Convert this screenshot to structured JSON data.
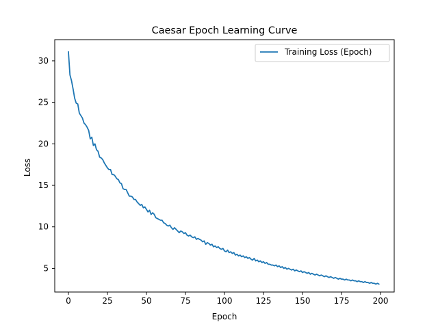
{
  "chart_data": {
    "type": "line",
    "title": "Caesar Epoch Learning Curve",
    "xlabel": "Epoch",
    "ylabel": "Loss",
    "xlim": [
      -8.75,
      208.75
    ],
    "ylim": [
      2.15,
      32.55
    ],
    "xticks": [
      0,
      25,
      50,
      75,
      100,
      125,
      150,
      175,
      200
    ],
    "yticks": [
      5,
      10,
      15,
      20,
      25,
      30
    ],
    "grid": false,
    "legend_position": "top-right",
    "series": [
      {
        "name": "Training Loss (Epoch)",
        "color": "#1f77b4",
        "x": [
          0,
          1,
          2,
          3,
          4,
          5,
          6,
          7,
          8,
          9,
          10,
          11,
          12,
          13,
          14,
          15,
          16,
          17,
          18,
          19,
          20,
          21,
          22,
          23,
          24,
          25,
          26,
          27,
          28,
          29,
          30,
          31,
          32,
          33,
          34,
          35,
          36,
          37,
          38,
          39,
          40,
          41,
          42,
          43,
          44,
          45,
          46,
          47,
          48,
          49,
          50,
          51,
          52,
          53,
          54,
          55,
          56,
          57,
          58,
          59,
          60,
          61,
          62,
          63,
          64,
          65,
          66,
          67,
          68,
          69,
          70,
          71,
          72,
          73,
          74,
          75,
          76,
          77,
          78,
          79,
          80,
          81,
          82,
          83,
          84,
          85,
          86,
          87,
          88,
          89,
          90,
          91,
          92,
          93,
          94,
          95,
          96,
          97,
          98,
          99,
          100,
          101,
          102,
          103,
          104,
          105,
          106,
          107,
          108,
          109,
          110,
          111,
          112,
          113,
          114,
          115,
          116,
          117,
          118,
          119,
          120,
          121,
          122,
          123,
          124,
          125,
          126,
          127,
          128,
          129,
          130,
          131,
          132,
          133,
          134,
          135,
          136,
          137,
          138,
          139,
          140,
          141,
          142,
          143,
          144,
          145,
          146,
          147,
          148,
          149,
          150,
          151,
          152,
          153,
          154,
          155,
          156,
          157,
          158,
          159,
          160,
          161,
          162,
          163,
          164,
          165,
          166,
          167,
          168,
          169,
          170,
          171,
          172,
          173,
          174,
          175,
          176,
          177,
          178,
          179,
          180,
          181,
          182,
          183,
          184,
          185,
          186,
          187,
          188,
          189,
          190,
          191,
          192,
          193,
          194,
          195,
          196,
          197,
          198,
          199
        ],
        "y": [
          31.1,
          28.3,
          27.6,
          26.6,
          25.5,
          24.9,
          24.8,
          23.7,
          23.4,
          23.1,
          22.5,
          22.3,
          22.0,
          21.6,
          20.6,
          20.8,
          19.8,
          20.0,
          19.3,
          19.1,
          18.4,
          18.3,
          18.1,
          17.7,
          17.4,
          17.1,
          16.9,
          16.9,
          16.3,
          16.3,
          16.1,
          15.8,
          15.7,
          15.3,
          15.2,
          14.6,
          14.5,
          14.5,
          14.1,
          13.7,
          13.7,
          13.6,
          13.3,
          13.3,
          13.0,
          12.8,
          12.6,
          12.7,
          12.3,
          12.4,
          12.1,
          11.8,
          12.0,
          11.5,
          11.7,
          11.5,
          11.1,
          11.0,
          10.9,
          10.8,
          10.8,
          10.5,
          10.4,
          10.2,
          10.1,
          10.2,
          9.9,
          9.7,
          9.9,
          9.7,
          9.5,
          9.3,
          9.5,
          9.4,
          9.2,
          9.3,
          9.0,
          8.9,
          9.0,
          8.8,
          8.7,
          8.8,
          8.5,
          8.6,
          8.5,
          8.4,
          8.2,
          8.3,
          7.9,
          8.1,
          8.0,
          7.8,
          7.9,
          7.6,
          7.7,
          7.5,
          7.6,
          7.4,
          7.3,
          7.4,
          7.1,
          7.0,
          7.2,
          6.9,
          7.0,
          6.8,
          6.9,
          6.6,
          6.7,
          6.5,
          6.6,
          6.4,
          6.5,
          6.3,
          6.4,
          6.2,
          6.3,
          6.1,
          6.0,
          6.2,
          5.9,
          6.0,
          5.8,
          5.9,
          5.7,
          5.8,
          5.6,
          5.7,
          5.5,
          5.5,
          5.4,
          5.4,
          5.3,
          5.4,
          5.2,
          5.3,
          5.1,
          5.2,
          5.0,
          5.1,
          4.9,
          5.0,
          4.9,
          4.8,
          4.9,
          4.7,
          4.8,
          4.7,
          4.6,
          4.7,
          4.5,
          4.6,
          4.5,
          4.4,
          4.5,
          4.3,
          4.4,
          4.3,
          4.2,
          4.3,
          4.2,
          4.1,
          4.2,
          4.1,
          4.0,
          4.1,
          4.0,
          3.9,
          4.0,
          3.9,
          3.8,
          3.9,
          3.8,
          3.7,
          3.8,
          3.7,
          3.7,
          3.6,
          3.7,
          3.6,
          3.6,
          3.5,
          3.6,
          3.5,
          3.5,
          3.4,
          3.5,
          3.4,
          3.4,
          3.3,
          3.4,
          3.3,
          3.3,
          3.2,
          3.3,
          3.2,
          3.2,
          3.1,
          3.2,
          3.1
        ]
      }
    ]
  }
}
